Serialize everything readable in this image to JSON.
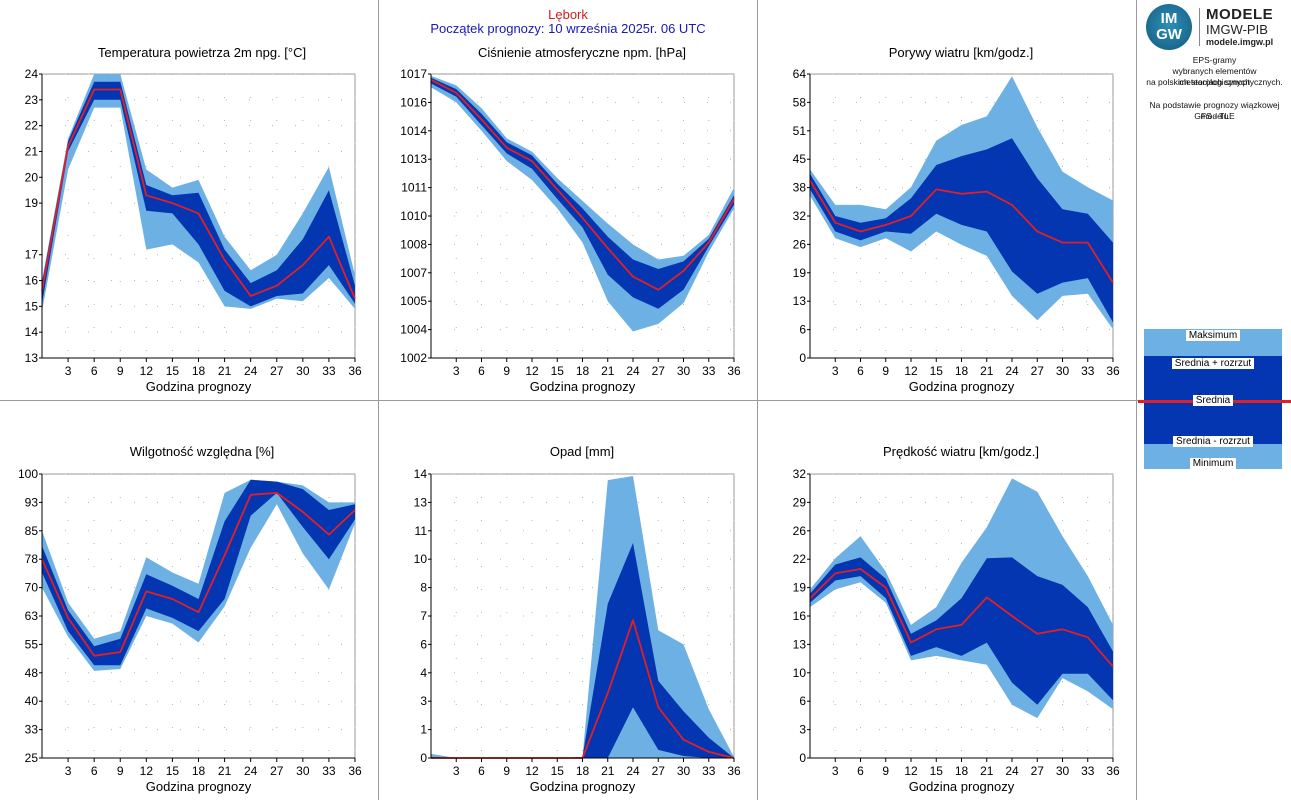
{
  "header": {
    "station": "Lębork",
    "forecast_start": "Początek prognozy: 10 września 2025r. 06 UTC"
  },
  "logo": {
    "badge_top": "IM",
    "badge_bottom": "GW",
    "line1": "MODELE",
    "line2": "IMGW-PIB",
    "line3": "modele.imgw.pl"
  },
  "info": {
    "line1": "EPS-gramy",
    "line2": "wybranych elementów meteorologicznych",
    "line3": "na polskich stacjach  synoptycznych.",
    "line4": "Na podstawie prognozy wiązkowej modelu",
    "line5": "GFS - TLE"
  },
  "legend": {
    "max": "Maksimum",
    "plus": "Średnia + rozrzut",
    "mean": "Średnia",
    "minus": "Średnia - rozrzut",
    "min": "Minimum"
  },
  "colors": {
    "outer_band": "#6db1e4",
    "inner_band": "#0336b0",
    "mean_line": "#e21f26",
    "grid": "#9a9a9a"
  },
  "chart_data": [
    {
      "id": "temperature",
      "type": "area",
      "title": "Temperatura powietrza 2m npg. [°C]",
      "xlabel": "Godzina prognozy",
      "x": [
        0,
        3,
        6,
        9,
        12,
        15,
        18,
        21,
        24,
        27,
        30,
        33,
        36
      ],
      "xticks": [
        "3",
        "6",
        "9",
        "12",
        "15",
        "18",
        "21",
        "24",
        "27",
        "30",
        "33",
        "36"
      ],
      "xtick_values": [
        3,
        6,
        9,
        12,
        15,
        18,
        21,
        24,
        27,
        30,
        33,
        36
      ],
      "xlim": [
        0,
        36
      ],
      "yticks": [
        "13",
        "14",
        "15",
        "16",
        "17",
        "19",
        "20",
        "21",
        "22",
        "23",
        "24"
      ],
      "ytick_values": [
        13,
        14,
        15,
        16,
        17,
        19,
        20,
        21,
        22,
        23,
        24
      ],
      "ylim": [
        13,
        24
      ],
      "min": [
        14.8,
        20.3,
        22.7,
        22.7,
        17.2,
        17.4,
        16.7,
        15.0,
        14.9,
        15.3,
        15.2,
        16.1,
        14.9
      ],
      "minus": [
        15.1,
        21.0,
        23.0,
        23.0,
        18.7,
        18.6,
        17.4,
        15.6,
        15.0,
        15.4,
        15.5,
        16.6,
        15.1
      ],
      "mean": [
        15.6,
        21.2,
        23.4,
        23.4,
        19.3,
        19.0,
        18.6,
        16.8,
        15.4,
        15.8,
        16.6,
        17.7,
        15.3
      ],
      "plus": [
        15.9,
        21.4,
        23.7,
        23.7,
        19.7,
        19.3,
        19.4,
        17.2,
        15.9,
        16.4,
        17.6,
        19.5,
        15.8
      ],
      "max": [
        16.0,
        21.5,
        24.0,
        24.0,
        20.3,
        19.6,
        19.9,
        17.7,
        16.4,
        17.0,
        18.6,
        20.4,
        16.2
      ]
    },
    {
      "id": "pressure",
      "type": "area",
      "title": "Ciśnienie atmosferyczne npm. [hPa]",
      "xlabel": "Godzina prognozy",
      "x": [
        0,
        3,
        6,
        9,
        12,
        15,
        18,
        21,
        24,
        27,
        30,
        33,
        36
      ],
      "xticks": [
        "3",
        "6",
        "9",
        "12",
        "15",
        "18",
        "21",
        "24",
        "27",
        "30",
        "33",
        "36"
      ],
      "xtick_values": [
        3,
        6,
        9,
        12,
        15,
        18,
        21,
        24,
        27,
        30,
        33,
        36
      ],
      "xlim": [
        0,
        36
      ],
      "yticks": [
        "1002",
        "1004",
        "1005",
        "1007",
        "1008",
        "1010",
        "1011",
        "1013",
        "1014",
        "1016",
        "1017"
      ],
      "ytick_values": [
        1002,
        1003.5,
        1005,
        1006.5,
        1008,
        1009.5,
        1011,
        1012.5,
        1014,
        1015.5,
        1017
      ],
      "ylim": [
        1002,
        1017
      ],
      "min": [
        1016.3,
        1015.5,
        1014.0,
        1012.4,
        1011.4,
        1009.9,
        1008.1,
        1005.0,
        1003.4,
        1003.8,
        1004.9,
        1007.6,
        1009.9
      ],
      "minus": [
        1016.5,
        1015.8,
        1014.3,
        1012.8,
        1012.0,
        1010.4,
        1008.9,
        1006.4,
        1005.2,
        1004.6,
        1005.6,
        1007.9,
        1010.1
      ],
      "mean": [
        1016.7,
        1016.0,
        1014.6,
        1013.1,
        1012.4,
        1010.9,
        1009.4,
        1007.8,
        1006.3,
        1005.6,
        1006.6,
        1008.1,
        1010.4
      ],
      "plus": [
        1016.8,
        1016.2,
        1014.9,
        1013.4,
        1012.7,
        1011.2,
        1009.9,
        1008.4,
        1007.2,
        1006.7,
        1007.1,
        1008.3,
        1010.6
      ],
      "max": [
        1016.9,
        1016.4,
        1015.2,
        1013.6,
        1012.9,
        1011.5,
        1010.3,
        1009.1,
        1008.0,
        1007.2,
        1007.4,
        1008.5,
        1011.0
      ]
    },
    {
      "id": "gusts",
      "type": "area",
      "title": "Porywy wiatru [km/godz.]",
      "xlabel": "Godzina prognozy",
      "x": [
        0,
        3,
        6,
        9,
        12,
        15,
        18,
        21,
        24,
        27,
        30,
        33,
        36
      ],
      "xticks": [
        "3",
        "6",
        "9",
        "12",
        "15",
        "18",
        "21",
        "24",
        "27",
        "30",
        "33",
        "36"
      ],
      "xtick_values": [
        3,
        6,
        9,
        12,
        15,
        18,
        21,
        24,
        27,
        30,
        33,
        36
      ],
      "xlim": [
        0,
        36
      ],
      "yticks": [
        "0",
        "6",
        "13",
        "19",
        "26",
        "32",
        "38",
        "45",
        "51",
        "58",
        "64"
      ],
      "ytick_values": [
        0,
        6.4,
        12.8,
        19.2,
        25.6,
        32,
        38.4,
        44.8,
        51.2,
        57.6,
        64
      ],
      "ylim": [
        0,
        64
      ],
      "min": [
        36.6,
        27.0,
        25.0,
        27.0,
        24.0,
        28.5,
        25.5,
        23.0,
        14.0,
        8.5,
        14.0,
        14.5,
        6.5
      ],
      "minus": [
        38.0,
        28.5,
        26.5,
        28.5,
        28.0,
        32.5,
        30.0,
        28.5,
        19.5,
        14.5,
        17.0,
        18.0,
        8.0
      ],
      "mean": [
        40.0,
        30.5,
        28.5,
        30.0,
        32.0,
        38.0,
        37.0,
        37.5,
        34.5,
        28.5,
        26.0,
        26.0,
        17.0
      ],
      "plus": [
        41.5,
        32.0,
        30.5,
        31.5,
        36.0,
        43.5,
        45.5,
        47.0,
        49.5,
        40.5,
        33.5,
        32.5,
        26.0
      ],
      "max": [
        42.5,
        34.5,
        34.5,
        33.5,
        38.5,
        49.0,
        52.5,
        54.5,
        63.5,
        52.0,
        42.0,
        38.5,
        35.5
      ]
    },
    {
      "id": "humidity",
      "type": "area",
      "title": "Wilgotność względna [%]",
      "xlabel": "Godzina prognozy",
      "x": [
        0,
        3,
        6,
        9,
        12,
        15,
        18,
        21,
        24,
        27,
        30,
        33,
        36
      ],
      "xticks": [
        "3",
        "6",
        "9",
        "12",
        "15",
        "18",
        "21",
        "24",
        "27",
        "30",
        "33",
        "36"
      ],
      "xtick_values": [
        3,
        6,
        9,
        12,
        15,
        18,
        21,
        24,
        27,
        30,
        33,
        36
      ],
      "xlim": [
        0,
        36
      ],
      "yticks": [
        "25",
        "33",
        "40",
        "48",
        "55",
        "63",
        "70",
        "78",
        "85",
        "93",
        "100"
      ],
      "ytick_values": [
        25,
        32.5,
        40,
        47.5,
        55,
        62.5,
        70,
        77.5,
        85,
        92.5,
        100
      ],
      "ylim": [
        25,
        100
      ],
      "min": [
        70.0,
        57.0,
        48.0,
        48.5,
        62.5,
        60.5,
        55.5,
        65.0,
        80.5,
        92.0,
        79.0,
        69.5,
        87.0
      ],
      "minus": [
        74.0,
        58.5,
        49.5,
        49.5,
        64.5,
        62.0,
        58.5,
        67.0,
        89.0,
        95.0,
        86.0,
        77.5,
        88.0
      ],
      "mean": [
        77.5,
        62.0,
        52.0,
        53.0,
        69.0,
        67.0,
        63.5,
        78.5,
        94.5,
        95.0,
        90.0,
        84.0,
        90.5
      ],
      "plus": [
        81.0,
        64.0,
        54.5,
        56.5,
        73.5,
        70.5,
        67.0,
        87.5,
        98.5,
        98.0,
        96.0,
        90.5,
        92.0
      ],
      "max": [
        85.0,
        66.0,
        56.5,
        58.5,
        78.0,
        74.0,
        71.0,
        95.0,
        98.5,
        98.0,
        97.0,
        92.5,
        92.5
      ]
    },
    {
      "id": "precipitation",
      "type": "area",
      "title": "Opad [mm]",
      "xlabel": "Godzina prognozy",
      "x": [
        0,
        3,
        6,
        9,
        12,
        15,
        18,
        21,
        24,
        27,
        30,
        33,
        36
      ],
      "xticks": [
        "3",
        "6",
        "9",
        "12",
        "15",
        "18",
        "21",
        "24",
        "27",
        "30",
        "33",
        "36"
      ],
      "xtick_values": [
        3,
        6,
        9,
        12,
        15,
        18,
        21,
        24,
        27,
        30,
        33,
        36
      ],
      "xlim": [
        0,
        36
      ],
      "yticks": [
        "0",
        "1",
        "3",
        "4",
        "6",
        "7",
        "8",
        "10",
        "11",
        "13",
        "14"
      ],
      "ytick_values": [
        0,
        1.4,
        2.8,
        4.2,
        5.6,
        7,
        8.4,
        9.8,
        11.2,
        12.6,
        14
      ],
      "ylim": [
        0,
        14
      ],
      "min": [
        0,
        0,
        0,
        0,
        0,
        0,
        0,
        0,
        0,
        0,
        0,
        0,
        0
      ],
      "minus": [
        0,
        0,
        0,
        0,
        0,
        0,
        0,
        0,
        2.5,
        0.4,
        0.1,
        0,
        0
      ],
      "mean": [
        0,
        0,
        0,
        0,
        0,
        0,
        0,
        3.2,
        6.8,
        2.5,
        0.9,
        0.3,
        0
      ],
      "plus": [
        0.05,
        0,
        0,
        0,
        0,
        0,
        0.05,
        7.6,
        10.6,
        3.8,
        2.3,
        1.0,
        0
      ],
      "max": [
        0.2,
        0,
        0,
        0,
        0,
        0,
        0.05,
        13.7,
        13.9,
        6.3,
        5.6,
        2.4,
        0.05
      ]
    },
    {
      "id": "wind-speed",
      "type": "area",
      "title": "Prędkość wiatru [km/godz.]",
      "xlabel": "Godzina prognozy",
      "x": [
        0,
        3,
        6,
        9,
        12,
        15,
        18,
        21,
        24,
        27,
        30,
        33,
        36
      ],
      "xticks": [
        "3",
        "6",
        "9",
        "12",
        "15",
        "18",
        "21",
        "24",
        "27",
        "30",
        "33",
        "36"
      ],
      "xtick_values": [
        3,
        6,
        9,
        12,
        15,
        18,
        21,
        24,
        27,
        30,
        33,
        36
      ],
      "xlim": [
        0,
        36
      ],
      "yticks": [
        "0",
        "3",
        "6",
        "10",
        "13",
        "16",
        "19",
        "22",
        "26",
        "29",
        "32"
      ],
      "ytick_values": [
        0,
        3.2,
        6.4,
        9.6,
        12.8,
        16,
        19.2,
        22.4,
        25.6,
        28.8,
        32
      ],
      "ylim": [
        0,
        32
      ],
      "min": [
        17.0,
        19.0,
        19.8,
        17.5,
        11.0,
        11.5,
        11.0,
        10.5,
        6.0,
        4.5,
        9.0,
        7.5,
        5.5
      ],
      "minus": [
        17.5,
        20.0,
        20.5,
        18.0,
        11.5,
        12.5,
        11.5,
        13.0,
        8.5,
        6.0,
        9.5,
        9.5,
        6.5
      ],
      "mean": [
        18.0,
        20.8,
        21.3,
        19.2,
        13.0,
        14.5,
        15.0,
        18.1,
        16.0,
        14.0,
        14.5,
        13.6,
        10.3
      ],
      "plus": [
        18.5,
        21.8,
        22.6,
        20.2,
        14.0,
        15.5,
        18.0,
        22.5,
        22.6,
        20.5,
        19.5,
        17.0,
        12.0
      ],
      "max": [
        19.0,
        22.5,
        25.0,
        21.0,
        15.0,
        17.0,
        22.0,
        26.0,
        31.5,
        30.0,
        25.0,
        20.5,
        15.0
      ]
    }
  ]
}
